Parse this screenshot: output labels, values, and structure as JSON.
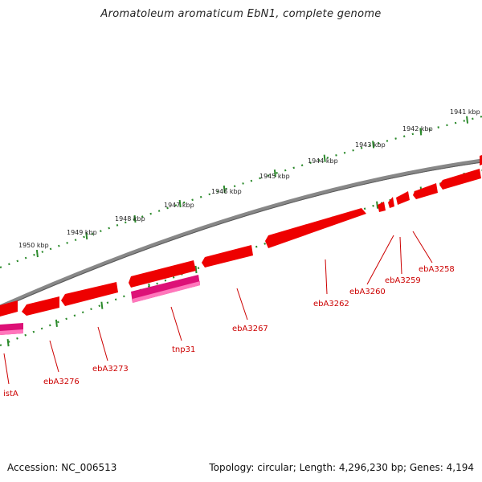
{
  "title": "Aromatoleum aromaticum EbN1, complete genome",
  "footer": {
    "accession_label": "Accession:",
    "accession": "NC_006513",
    "topology_label": "Topology:",
    "topology": "circular",
    "length_label": "Length:",
    "length": "4,296,230 bp",
    "genes_label": "Genes:",
    "genes": "4,194"
  },
  "colors": {
    "backbone": "#7a7a7a",
    "gene": "#ee0000",
    "gene_highlight": "#ff6666",
    "transposase": "#dd1177",
    "transposase_highlight": "#ff77bb",
    "scale_dots": "#2b8a2b",
    "label": "#cc0000"
  },
  "scale_labels": [
    "1941 kbp",
    "1942 kbp",
    "1943 kbp",
    "1944 kbp",
    "1945 kbp",
    "1946 kbp",
    "1947 kbp",
    "1948 kbp",
    "1949 kbp",
    "1950 kbp"
  ],
  "gene_labels": [
    "ebA3258",
    "ebA3259",
    "ebA3260",
    "ebA3262",
    "ebA3267",
    "tnp31",
    "ebA3273",
    "ebA3276",
    "istA"
  ]
}
